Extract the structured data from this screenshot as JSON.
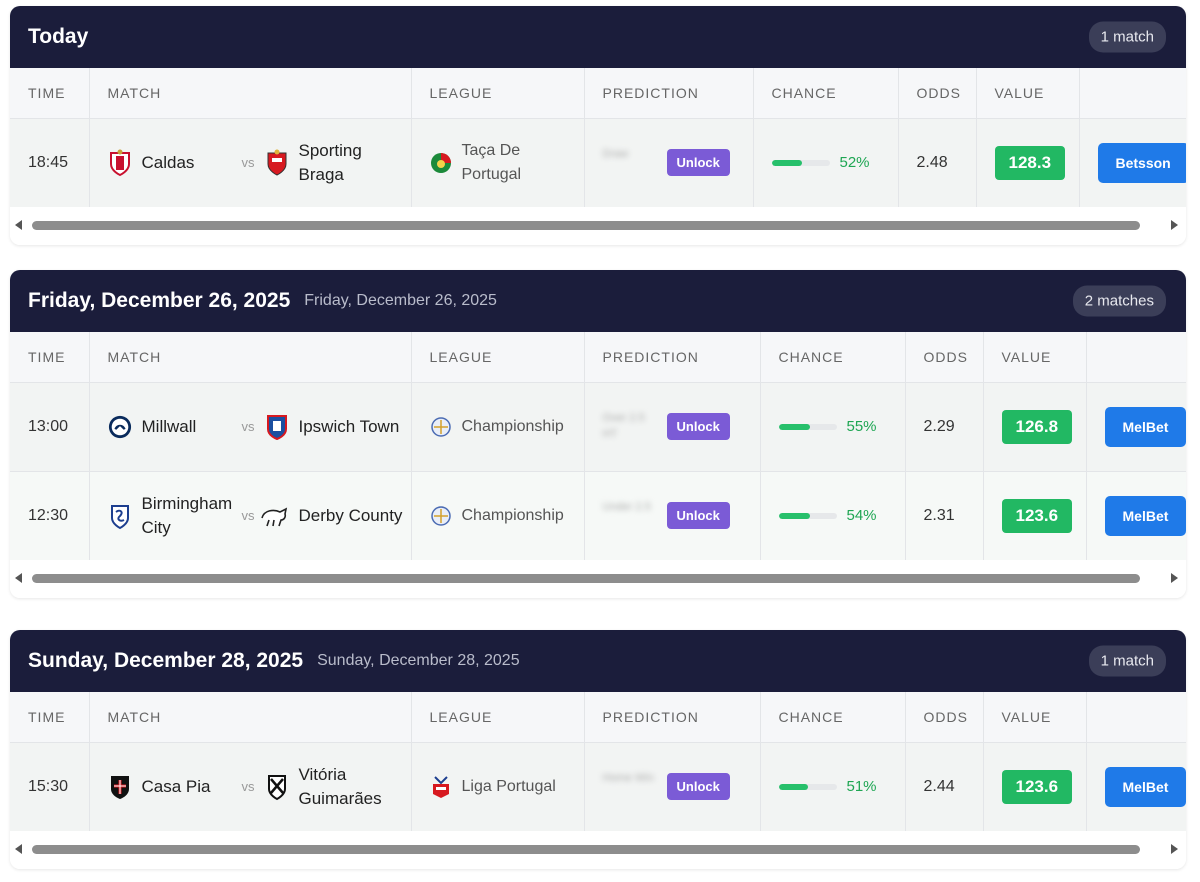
{
  "colors": {
    "header_bg": "#1b1d3b",
    "value_green": "#22b863",
    "book_blue": "#1f7ae8",
    "unlock_purple": "#7b5bd6",
    "chance_green": "#27c06b"
  },
  "columns": [
    "TIME",
    "MATCH",
    "LEAGUE",
    "PREDICTION",
    "CHANCE",
    "ODDS",
    "VALUE",
    ""
  ],
  "sections": [
    {
      "title": "Today",
      "subtitle": "",
      "count": "1 match",
      "rows": [
        {
          "time": "18:45",
          "home": "Caldas",
          "home_icon": "caldas-crest-icon",
          "vs": "vs",
          "away": "Sporting Braga",
          "away_icon": "braga-crest-icon",
          "league": "Taça De Portugal",
          "league_icon": "taca-de-portugal-icon",
          "prediction_blurred": "Draw",
          "unlock": "Unlock",
          "chance": "52%",
          "chance_value": 52,
          "odds": "2.48",
          "value": "128.3",
          "bookmaker": "Betsson"
        }
      ]
    },
    {
      "title": "Friday, December 26, 2025",
      "subtitle": "Friday, December 26, 2025",
      "count": "2 matches",
      "rows": [
        {
          "time": "13:00",
          "home": "Millwall",
          "home_icon": "millwall-crest-icon",
          "vs": "vs",
          "away": "Ipswich Town",
          "away_icon": "ipswich-crest-icon",
          "league": "Championship",
          "league_icon": "championship-icon",
          "prediction_blurred": "Over 2.5 HT",
          "unlock": "Unlock",
          "chance": "55%",
          "chance_value": 55,
          "odds": "2.29",
          "value": "126.8",
          "bookmaker": "MelBet"
        },
        {
          "time": "12:30",
          "home": "Birmingham City",
          "home_icon": "birmingham-crest-icon",
          "vs": "vs",
          "away": "Derby County",
          "away_icon": "derby-crest-icon",
          "league": "Championship",
          "league_icon": "championship-icon",
          "prediction_blurred": "Under 2.5",
          "unlock": "Unlock",
          "chance": "54%",
          "chance_value": 54,
          "odds": "2.31",
          "value": "123.6",
          "bookmaker": "MelBet"
        }
      ]
    },
    {
      "title": "Sunday, December 28, 2025",
      "subtitle": "Sunday, December 28, 2025",
      "count": "1 match",
      "rows": [
        {
          "time": "15:30",
          "home": "Casa Pia",
          "home_icon": "casa-pia-crest-icon",
          "vs": "vs",
          "away": "Vitória Guimarães",
          "away_icon": "vitoria-crest-icon",
          "league": "Liga Portugal",
          "league_icon": "liga-portugal-icon",
          "prediction_blurred": "Home Win",
          "unlock": "Unlock",
          "chance": "51%",
          "chance_value": 51,
          "odds": "2.44",
          "value": "123.6",
          "bookmaker": "MelBet"
        }
      ]
    }
  ]
}
